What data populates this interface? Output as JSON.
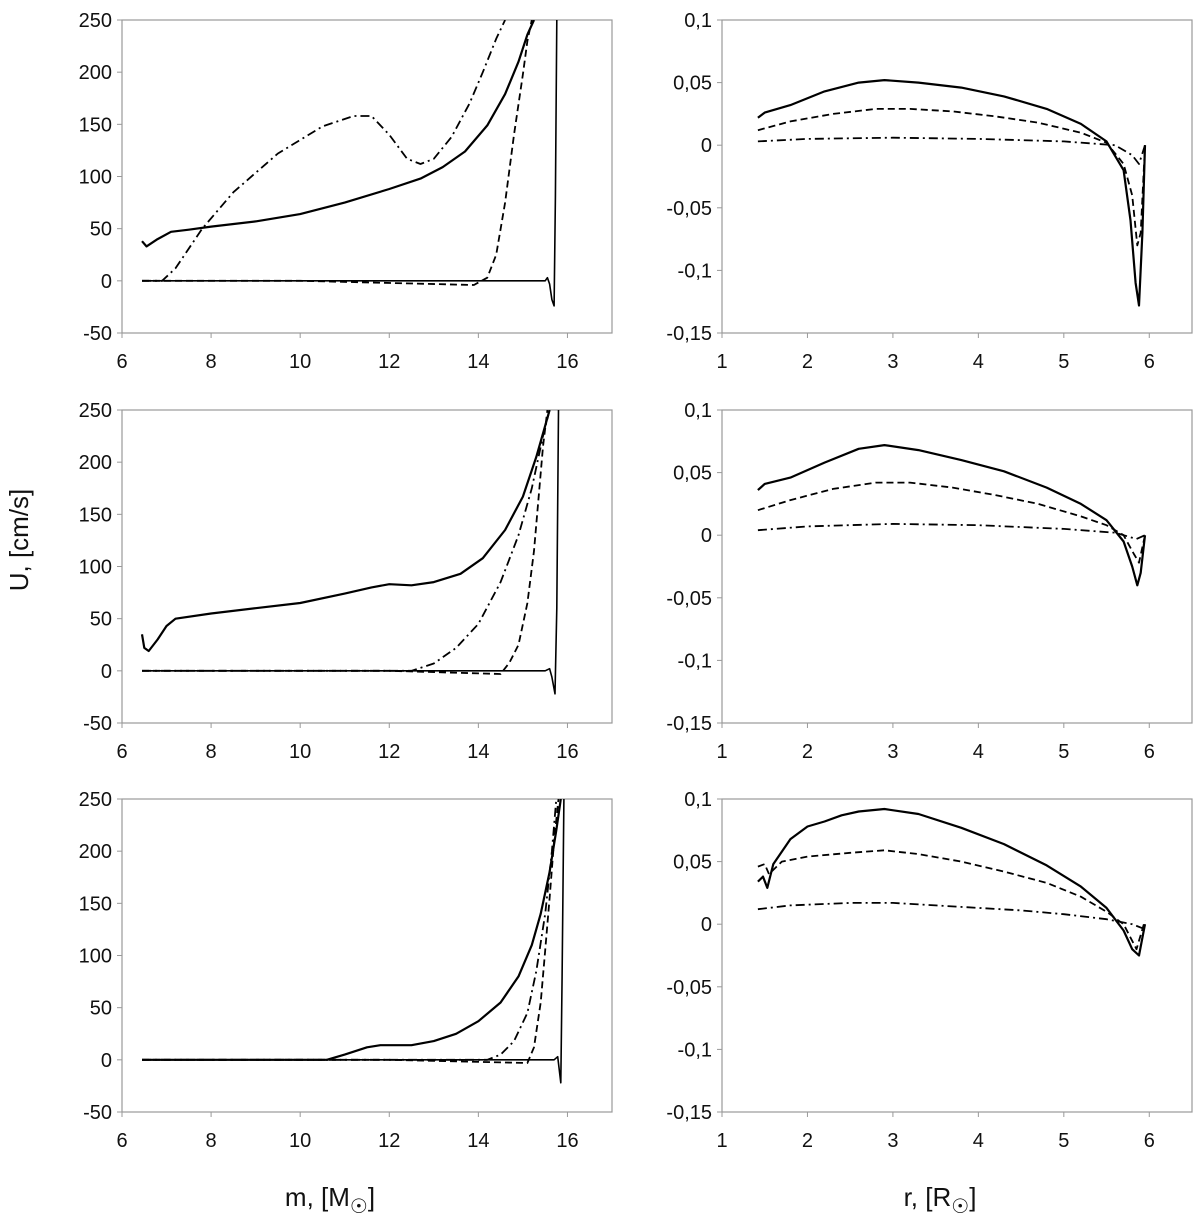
{
  "figure": {
    "ylabel": "U, [cm/s]",
    "xlabel_left_prefix": "m, [M",
    "xlabel_right_prefix": "r, [R",
    "xlabel_suffix": "]",
    "sun_symbol": "☉",
    "line_color": "#000000",
    "frame_color": "#999999"
  },
  "chart_data": [
    {
      "type": "line",
      "panel": "row1-left",
      "xlim": [
        6,
        17
      ],
      "ylim": [
        -50,
        250
      ],
      "xticks": [
        6,
        8,
        10,
        12,
        14,
        16
      ],
      "yticks": [
        -50,
        0,
        50,
        100,
        150,
        200,
        250
      ],
      "ytick_labels": [
        "-50",
        "0",
        "50",
        "100",
        "150",
        "200",
        "250"
      ],
      "xlabel": "",
      "ylabel": "",
      "series": [
        {
          "name": "solid",
          "style": "solid",
          "x": [
            6.45,
            6.55,
            6.8,
            7.1,
            7.5,
            8.0,
            9.0,
            10.0,
            11.0,
            12.0,
            12.7,
            13.2,
            13.7,
            14.2,
            14.6,
            14.9,
            15.1,
            15.25
          ],
          "y": [
            38,
            33,
            40,
            47,
            49,
            52,
            57,
            64,
            75,
            88,
            98,
            109,
            124,
            149,
            179,
            210,
            236,
            250
          ]
        },
        {
          "name": "solid-thin",
          "style": "solid",
          "x": [
            6.45,
            10.0,
            15.0,
            15.5,
            15.55,
            15.6,
            15.65,
            15.7,
            15.73,
            15.76
          ],
          "y": [
            0,
            0,
            0,
            0,
            3,
            -3,
            -18,
            -24,
            80,
            250
          ]
        },
        {
          "name": "dashed",
          "style": "dashed",
          "x": [
            6.45,
            10.0,
            13.9,
            14.2,
            14.4,
            14.6,
            14.8,
            15.0,
            15.1,
            15.2
          ],
          "y": [
            0,
            0,
            -4,
            3,
            25,
            75,
            140,
            198,
            230,
            250
          ]
        },
        {
          "name": "dash-dot",
          "style": "dashdot",
          "x": [
            6.45,
            6.9,
            7.2,
            7.8,
            8.5,
            9.5,
            10.5,
            11.2,
            11.6,
            12.0,
            12.4,
            12.7,
            13.0,
            13.4,
            13.8,
            14.1,
            14.4,
            14.6
          ],
          "y": [
            0,
            0,
            12,
            50,
            85,
            122,
            148,
            158,
            158,
            140,
            117,
            112,
            117,
            138,
            170,
            200,
            232,
            250
          ]
        }
      ]
    },
    {
      "type": "line",
      "panel": "row1-right",
      "xlim": [
        1,
        6.5
      ],
      "ylim": [
        -0.15,
        0.1
      ],
      "xticks": [
        1,
        2,
        3,
        4,
        5,
        6
      ],
      "yticks": [
        -0.15,
        -0.1,
        -0.05,
        0,
        0.05,
        0.1
      ],
      "ytick_labels": [
        "-0,15",
        "-0,1",
        "-0,05",
        "0",
        "0,05",
        "0,1"
      ],
      "xlabel": "",
      "ylabel": "",
      "series": [
        {
          "name": "solid",
          "style": "solid",
          "x": [
            1.42,
            1.5,
            1.8,
            2.2,
            2.6,
            2.9,
            3.3,
            3.8,
            4.3,
            4.8,
            5.2,
            5.5,
            5.7,
            5.78,
            5.84,
            5.88,
            5.92,
            5.95
          ],
          "y": [
            0.022,
            0.026,
            0.032,
            0.043,
            0.05,
            0.052,
            0.05,
            0.046,
            0.039,
            0.029,
            0.017,
            0.003,
            -0.02,
            -0.06,
            -0.11,
            -0.128,
            -0.07,
            0.0
          ]
        },
        {
          "name": "dashed",
          "style": "dashed",
          "x": [
            1.42,
            1.8,
            2.3,
            2.8,
            3.2,
            3.7,
            4.2,
            4.7,
            5.2,
            5.5,
            5.7,
            5.8,
            5.86,
            5.9,
            5.95
          ],
          "y": [
            0.012,
            0.019,
            0.025,
            0.029,
            0.029,
            0.027,
            0.023,
            0.018,
            0.01,
            0.002,
            -0.015,
            -0.04,
            -0.08,
            -0.07,
            0.0
          ]
        },
        {
          "name": "dash-dot",
          "style": "dashdot",
          "x": [
            1.42,
            2.0,
            3.0,
            4.0,
            5.0,
            5.6,
            5.8,
            5.88,
            5.95
          ],
          "y": [
            0.003,
            0.005,
            0.006,
            0.005,
            0.003,
            0.0,
            -0.008,
            -0.015,
            0.0
          ]
        }
      ]
    },
    {
      "type": "line",
      "panel": "row2-left",
      "xlim": [
        6,
        17
      ],
      "ylim": [
        -50,
        250
      ],
      "xticks": [
        6,
        8,
        10,
        12,
        14,
        16
      ],
      "yticks": [
        -50,
        0,
        50,
        100,
        150,
        200,
        250
      ],
      "ytick_labels": [
        "-50",
        "0",
        "50",
        "100",
        "150",
        "200",
        "250"
      ],
      "xlabel": "",
      "ylabel": "",
      "series": [
        {
          "name": "solid",
          "style": "solid",
          "x": [
            6.45,
            6.5,
            6.6,
            6.8,
            7.0,
            7.2,
            8.0,
            9.0,
            10.0,
            11.0,
            11.6,
            12.0,
            12.5,
            13.0,
            13.6,
            14.1,
            14.6,
            15.0,
            15.3,
            15.5,
            15.6
          ],
          "y": [
            35,
            22,
            19,
            30,
            43,
            50,
            55,
            60,
            65,
            74,
            80,
            83,
            82,
            85,
            93,
            108,
            135,
            167,
            205,
            235,
            250
          ]
        },
        {
          "name": "solid-thin",
          "style": "solid",
          "x": [
            6.45,
            12.0,
            15.5,
            15.6,
            15.65,
            15.72,
            15.76,
            15.8
          ],
          "y": [
            0,
            0,
            0,
            2,
            -6,
            -22,
            60,
            250
          ]
        },
        {
          "name": "dashed",
          "style": "dashed",
          "x": [
            6.45,
            12.0,
            14.5,
            14.7,
            14.9,
            15.1,
            15.25,
            15.35,
            15.45,
            15.55
          ],
          "y": [
            0,
            0,
            -3,
            8,
            25,
            65,
            115,
            165,
            215,
            250
          ]
        },
        {
          "name": "dash-dot",
          "style": "dashdot",
          "x": [
            6.45,
            12.0,
            12.5,
            13.0,
            13.5,
            14.0,
            14.5,
            14.9,
            15.2,
            15.45,
            15.6
          ],
          "y": [
            0,
            0,
            0,
            7,
            22,
            45,
            85,
            130,
            175,
            225,
            250
          ]
        }
      ]
    },
    {
      "type": "line",
      "panel": "row2-right",
      "xlim": [
        1,
        6.5
      ],
      "ylim": [
        -0.15,
        0.1
      ],
      "xticks": [
        1,
        2,
        3,
        4,
        5,
        6
      ],
      "yticks": [
        -0.15,
        -0.1,
        -0.05,
        0,
        0.05,
        0.1
      ],
      "ytick_labels": [
        "-0,15",
        "-0,1",
        "-0,05",
        "0",
        "0,05",
        "0,1"
      ],
      "xlabel": "",
      "ylabel": "",
      "series": [
        {
          "name": "solid",
          "style": "solid",
          "x": [
            1.42,
            1.5,
            1.8,
            2.2,
            2.6,
            2.9,
            3.3,
            3.8,
            4.3,
            4.8,
            5.2,
            5.5,
            5.7,
            5.8,
            5.86,
            5.9,
            5.95
          ],
          "y": [
            0.036,
            0.041,
            0.046,
            0.058,
            0.069,
            0.072,
            0.068,
            0.06,
            0.051,
            0.038,
            0.025,
            0.012,
            -0.005,
            -0.025,
            -0.04,
            -0.03,
            0.0
          ]
        },
        {
          "name": "dashed",
          "style": "dashed",
          "x": [
            1.42,
            1.8,
            2.3,
            2.8,
            3.2,
            3.7,
            4.2,
            4.7,
            5.2,
            5.5,
            5.7,
            5.82,
            5.88,
            5.95
          ],
          "y": [
            0.02,
            0.028,
            0.037,
            0.042,
            0.042,
            0.038,
            0.032,
            0.025,
            0.015,
            0.008,
            0.0,
            -0.015,
            -0.022,
            0.0
          ]
        },
        {
          "name": "dash-dot",
          "style": "dashdot",
          "x": [
            1.42,
            2.0,
            3.0,
            4.0,
            5.0,
            5.6,
            5.85,
            5.95
          ],
          "y": [
            0.004,
            0.007,
            0.009,
            0.008,
            0.005,
            0.002,
            -0.003,
            0.0
          ]
        }
      ]
    },
    {
      "type": "line",
      "panel": "row3-left",
      "xlim": [
        6,
        17
      ],
      "ylim": [
        -50,
        250
      ],
      "xticks": [
        6,
        8,
        10,
        12,
        14,
        16
      ],
      "yticks": [
        -50,
        0,
        50,
        100,
        150,
        200,
        250
      ],
      "ytick_labels": [
        "-50",
        "0",
        "50",
        "100",
        "150",
        "200",
        "250"
      ],
      "xlabel": "m, [M☉]",
      "ylabel": "",
      "series": [
        {
          "name": "solid",
          "style": "solid",
          "x": [
            6.45,
            10.6,
            11.0,
            11.5,
            11.8,
            12.0,
            12.5,
            13.0,
            13.5,
            14.0,
            14.5,
            14.9,
            15.2,
            15.4,
            15.6,
            15.75,
            15.85
          ],
          "y": [
            0,
            0,
            5,
            12,
            14,
            14,
            14,
            18,
            25,
            37,
            55,
            80,
            110,
            140,
            180,
            220,
            250
          ]
        },
        {
          "name": "solid-thin",
          "style": "solid",
          "x": [
            6.45,
            12.0,
            15.7,
            15.78,
            15.85,
            15.88,
            15.92
          ],
          "y": [
            0,
            0,
            0,
            3,
            -22,
            80,
            250
          ]
        },
        {
          "name": "dashed",
          "style": "dashed",
          "x": [
            6.45,
            12.0,
            15.1,
            15.25,
            15.4,
            15.5,
            15.6,
            15.7,
            15.8
          ],
          "y": [
            0,
            0,
            -3,
            12,
            55,
            105,
            155,
            210,
            250
          ]
        },
        {
          "name": "dash-dot",
          "style": "dashdot",
          "x": [
            6.45,
            12.0,
            14.2,
            14.5,
            14.8,
            15.1,
            15.3,
            15.5,
            15.65,
            15.75
          ],
          "y": [
            0,
            0,
            0,
            5,
            18,
            45,
            85,
            140,
            200,
            250
          ]
        }
      ]
    },
    {
      "type": "line",
      "panel": "row3-right",
      "xlim": [
        1,
        6.5
      ],
      "ylim": [
        -0.15,
        0.1
      ],
      "xticks": [
        1,
        2,
        3,
        4,
        5,
        6
      ],
      "yticks": [
        -0.15,
        -0.1,
        -0.05,
        0,
        0.05,
        0.1
      ],
      "ytick_labels": [
        "-0,15",
        "-0,1",
        "-0,05",
        "0",
        "0,05",
        "0,1"
      ],
      "xlabel": "r, [R☉]",
      "ylabel": "",
      "series": [
        {
          "name": "solid",
          "style": "solid",
          "x": [
            1.42,
            1.48,
            1.53,
            1.6,
            1.8,
            2.0,
            2.2,
            2.4,
            2.6,
            2.9,
            3.3,
            3.8,
            4.3,
            4.8,
            5.2,
            5.5,
            5.7,
            5.8,
            5.88,
            5.95
          ],
          "y": [
            0.034,
            0.038,
            0.029,
            0.048,
            0.068,
            0.078,
            0.082,
            0.087,
            0.09,
            0.092,
            0.088,
            0.077,
            0.064,
            0.047,
            0.03,
            0.013,
            -0.005,
            -0.02,
            -0.025,
            0.0
          ]
        },
        {
          "name": "dashed",
          "style": "dashed",
          "x": [
            1.42,
            1.5,
            1.55,
            1.7,
            2.0,
            2.5,
            2.9,
            3.3,
            3.8,
            4.3,
            4.8,
            5.2,
            5.5,
            5.7,
            5.85,
            5.95
          ],
          "y": [
            0.046,
            0.048,
            0.04,
            0.05,
            0.054,
            0.057,
            0.059,
            0.056,
            0.05,
            0.042,
            0.033,
            0.022,
            0.01,
            0.0,
            -0.02,
            0.003
          ]
        },
        {
          "name": "dash-dot",
          "style": "dashdot",
          "x": [
            1.42,
            1.8,
            2.5,
            3.0,
            3.5,
            4.0,
            4.5,
            5.0,
            5.5,
            5.8,
            5.95
          ],
          "y": [
            0.012,
            0.015,
            0.017,
            0.017,
            0.015,
            0.013,
            0.011,
            0.008,
            0.004,
            0.0,
            -0.004
          ]
        }
      ]
    }
  ]
}
